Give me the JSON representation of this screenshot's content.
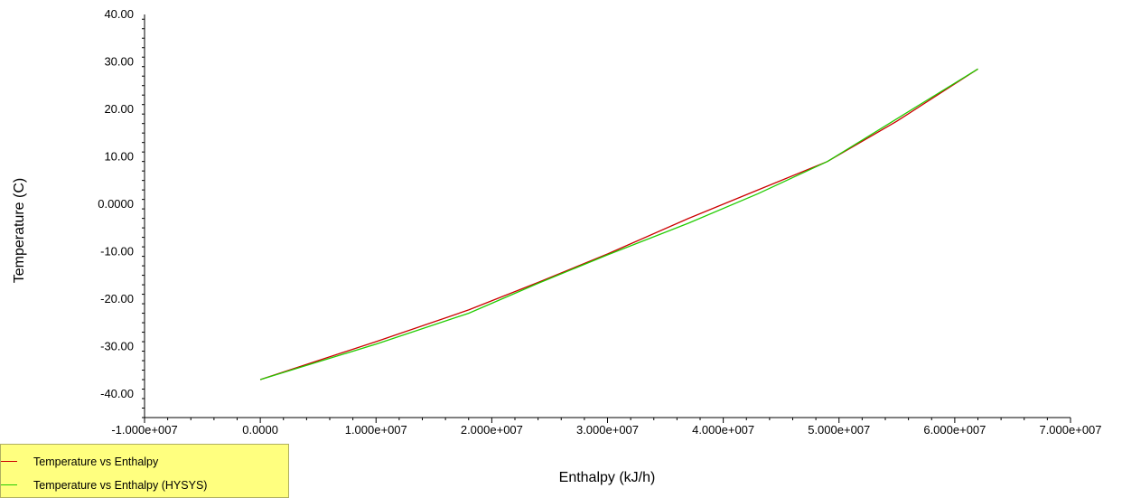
{
  "chart_data": {
    "type": "line",
    "xlabel": "Enthalpy (kJ/h)",
    "ylabel": "Temperature (C)",
    "xlim": [
      -10000000,
      70000000
    ],
    "ylim": [
      -45,
      40
    ],
    "x_ticks": [
      -10000000,
      0,
      10000000,
      20000000,
      30000000,
      40000000,
      50000000,
      60000000,
      70000000
    ],
    "x_tick_labels": [
      "-1.000e+007",
      "0.0000",
      "1.000e+007",
      "2.000e+007",
      "3.000e+007",
      "4.000e+007",
      "5.000e+007",
      "6.000e+007",
      "7.000e+007"
    ],
    "y_ticks": [
      40,
      30,
      20,
      10,
      0,
      -10,
      -20,
      -30,
      -40
    ],
    "y_tick_labels": [
      "40.00",
      "30.00",
      "20.00",
      "10.00",
      "0.0000",
      "-10.00",
      "-20.00",
      "-30.00",
      "-40.00"
    ],
    "grid": false,
    "legend_position": "bottom-left",
    "series": [
      {
        "name": "Temperature vs Enthalpy",
        "color": "#cc0000",
        "x": [
          0,
          10000000,
          18000000,
          24000000,
          30000000,
          37000000,
          43000000,
          49000000,
          55000000,
          62000000
        ],
        "y": [
          -37,
          -29,
          -22.3,
          -16.5,
          -10.5,
          -3,
          3,
          9,
          17.5,
          28.5
        ]
      },
      {
        "name": "Temperature vs Enthalpy (HYSYS)",
        "color": "#22cc00",
        "x": [
          0,
          10000000,
          18000000,
          24000000,
          30000000,
          37000000,
          43000000,
          49000000,
          55000000,
          62000000
        ],
        "y": [
          -37,
          -29.5,
          -23,
          -16.7,
          -10.7,
          -4,
          2.2,
          9,
          18,
          28.5
        ]
      }
    ]
  }
}
